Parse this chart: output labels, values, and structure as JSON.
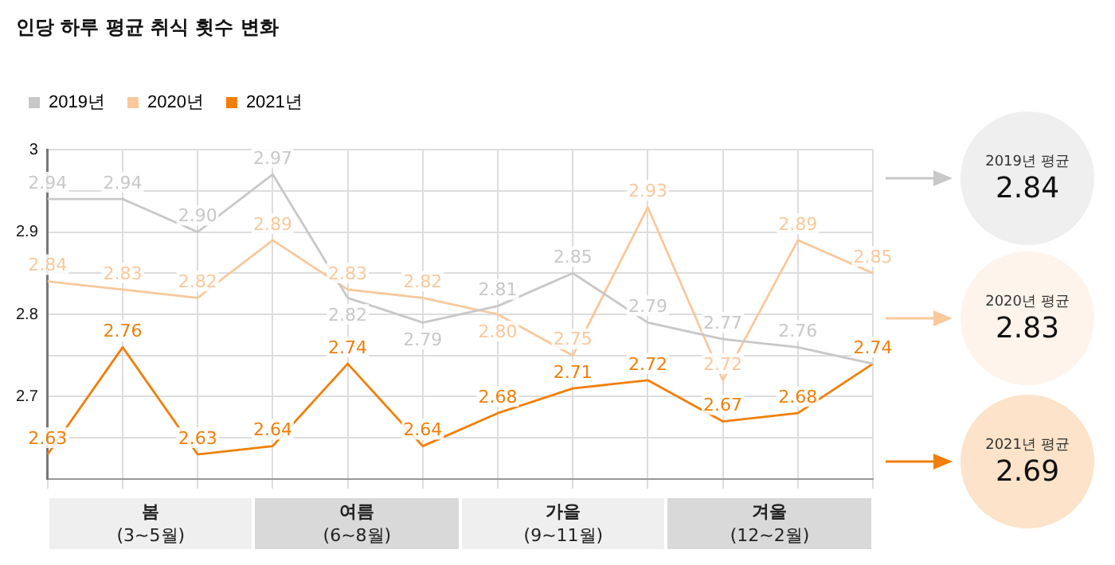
{
  "chart_data": {
    "type": "line",
    "title": "인당 하루 평균 취식 횟수 변화",
    "categories": [
      null,
      null,
      null,
      null,
      null,
      null,
      null,
      null,
      null,
      null,
      null,
      null
    ],
    "series": [
      {
        "name": "2019년",
        "color": "#c8c8c8",
        "values": [
          2.94,
          2.94,
          2.9,
          2.97,
          2.82,
          2.79,
          2.81,
          2.85,
          2.79,
          2.77,
          2.76,
          2.74
        ],
        "value_labels": [
          "2.94",
          "2.94",
          "2.90",
          "2.97",
          "2.82",
          "2.79",
          "2.81",
          "2.85",
          "2.79",
          "2.77",
          "2.76",
          null
        ]
      },
      {
        "name": "2020년",
        "color": "#f9c89b",
        "values": [
          2.84,
          2.83,
          2.82,
          2.89,
          2.83,
          2.82,
          2.8,
          2.75,
          2.93,
          2.72,
          2.89,
          2.85
        ],
        "value_labels": [
          "2.84",
          "2.83",
          "2.82",
          "2.89",
          "2.83",
          "2.82",
          "2.80",
          "2.75",
          "2.93",
          "2.72",
          "2.89",
          "2.85"
        ]
      },
      {
        "name": "2021년",
        "color": "#f07f09",
        "values": [
          2.63,
          2.76,
          2.63,
          2.64,
          2.74,
          2.64,
          2.68,
          2.71,
          2.72,
          2.67,
          2.68,
          2.74
        ],
        "value_labels": [
          "2.63",
          "2.76",
          "2.63",
          "2.64",
          "2.74",
          "2.64",
          "2.68",
          "2.71",
          "2.72",
          "2.67",
          "2.68",
          "2.74"
        ]
      }
    ],
    "ylim": [
      2.6,
      3
    ],
    "yticks": [
      {
        "value": 2.6,
        "label": null
      },
      {
        "value": 2.65,
        "label": null
      },
      2.7,
      {
        "value": 2.75,
        "label": null
      },
      2.8,
      {
        "value": 2.85,
        "label": null
      },
      2.9,
      {
        "value": 2.95,
        "label": null
      },
      3
    ],
    "grid": true,
    "legend": "top left",
    "marker": "none",
    "line_style": "solid",
    "annotations": [
      "2019년 평균\n2.84",
      "2020년 평균\n2.83",
      "2021년 평균\n2.69",
      "봄\n(3~5월)",
      "여름\n(6~8월)",
      "가을\n(9~11월)",
      "겨울\n(12~2월)"
    ]
  }
}
